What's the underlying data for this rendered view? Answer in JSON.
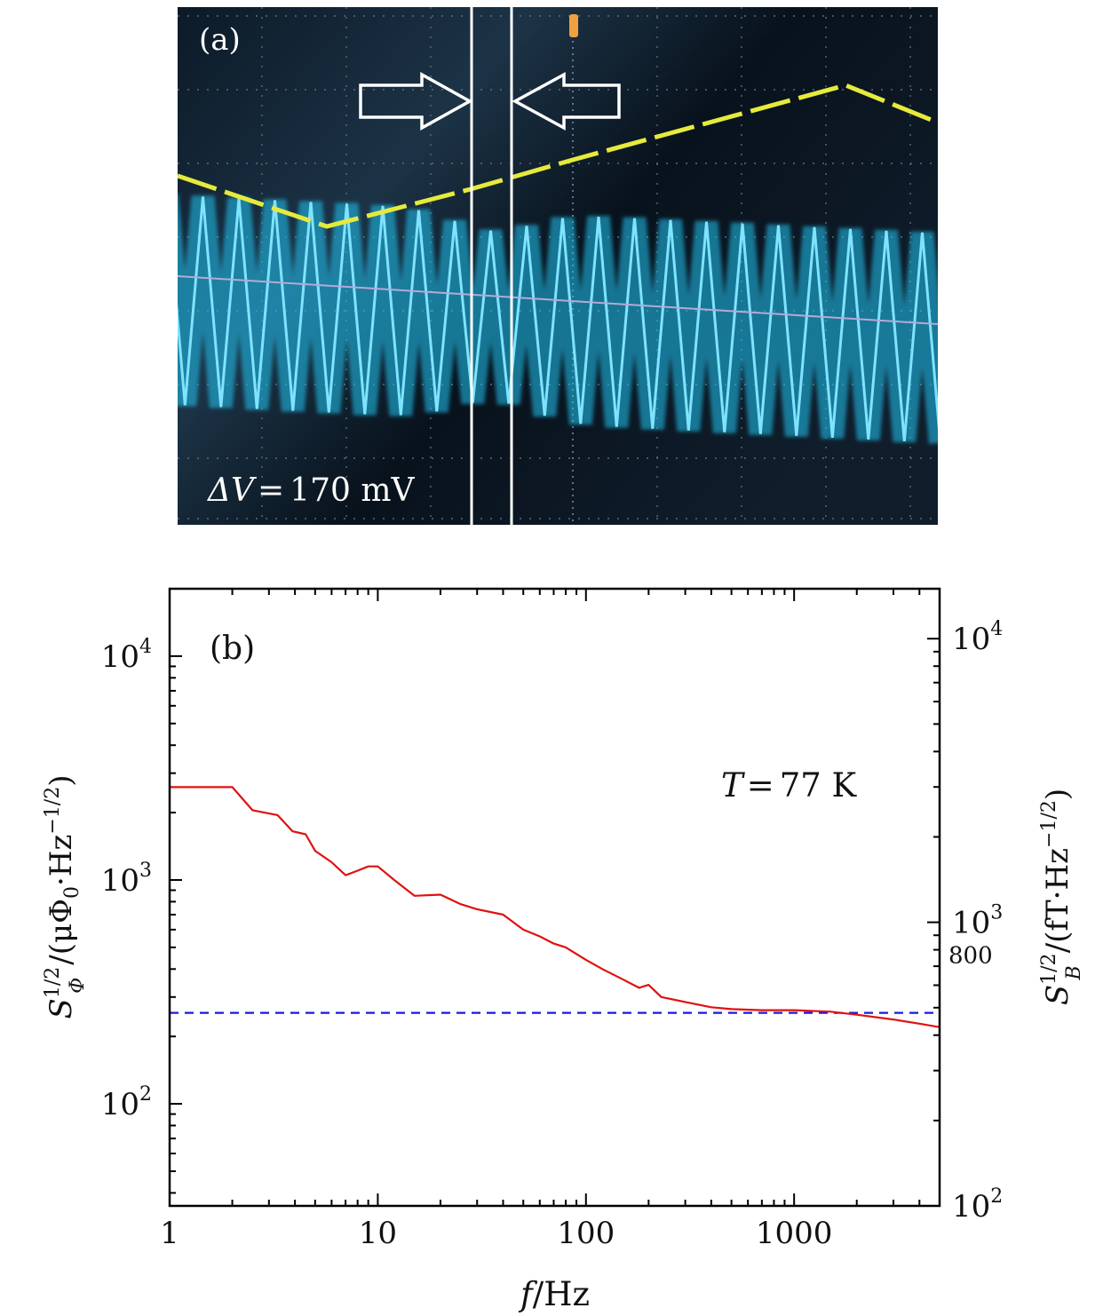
{
  "panel_a": {
    "label": "(a)",
    "delta_v_symbol": "ΔV",
    "delta_v_equals": "=",
    "delta_v_value": "170 mV",
    "colors": {
      "background": "#07101a",
      "grid": "#5d6a78",
      "flux_signal": "#1fc4f2",
      "ramp_trace": "#e6ea3c",
      "baseline": "#b7a9d8",
      "marker": "#ffffff",
      "cursor": "#f0a040"
    }
  },
  "panel_b": {
    "label": "(b)",
    "annotation_symbol": "T",
    "annotation_equals": "=",
    "annotation_value": "77 K",
    "left_ylabel": {
      "base": "S",
      "sup": "1/2",
      "sub": "Φ",
      "unit": "/(μΦ",
      "unit_sub": "0",
      "unit_mid": "·Hz",
      "unit_sup": "−1/2",
      "unit_end": ")"
    },
    "right_ylabel": {
      "base": "S",
      "sup": "1/2",
      "sub": "B",
      "unit": "/(fT·Hz",
      "unit_sup": "−1/2",
      "unit_end": ")"
    },
    "xlabel": {
      "var": "f",
      "unit": "/Hz"
    },
    "colors": {
      "noise": "#e01010",
      "reference": "#1a1adc",
      "axes": "#000000"
    }
  },
  "chart_data": {
    "type": "line",
    "x_scale": "log",
    "y_scale": "log",
    "xlim": [
      1,
      5000
    ],
    "ylim_left": [
      35,
      20000
    ],
    "ylim_right": [
      100,
      15000
    ],
    "x_ticks": [
      {
        "value": 1,
        "label": "1"
      },
      {
        "value": 10,
        "label": "10"
      },
      {
        "value": 100,
        "label": "100"
      },
      {
        "value": 1000,
        "label": "1000"
      }
    ],
    "y_ticks_left": [
      {
        "value": 100,
        "base": "10",
        "exp": "2"
      },
      {
        "value": 1000,
        "base": "10",
        "exp": "3"
      },
      {
        "value": 10000,
        "base": "10",
        "exp": "4"
      }
    ],
    "y_ticks_right": [
      {
        "value": 100,
        "base": "10",
        "exp": "2"
      },
      {
        "value": 1000,
        "base": "10",
        "exp": "3"
      },
      {
        "value": 10000,
        "base": "10",
        "exp": "4"
      }
    ],
    "right_marker": {
      "value": 800,
      "label": "800"
    },
    "series": [
      {
        "x": [
          1,
          2,
          2.5,
          3.3,
          3.9,
          4.5,
          5,
          6,
          7,
          8,
          9,
          10,
          12,
          15,
          20,
          25,
          30,
          40,
          50,
          60,
          70,
          80,
          100,
          120,
          150,
          180,
          200,
          230,
          300,
          400,
          500,
          700,
          1000,
          1500,
          2000,
          3000,
          4000,
          5000
        ],
        "y": [
          2600,
          2600,
          2050,
          1950,
          1650,
          1600,
          1350,
          1200,
          1050,
          1100,
          1150,
          1150,
          1000,
          850,
          860,
          780,
          740,
          700,
          600,
          560,
          520,
          500,
          440,
          400,
          360,
          330,
          340,
          300,
          285,
          270,
          265,
          262,
          262,
          258,
          250,
          238,
          228,
          220
        ]
      },
      {
        "x": [
          1,
          5000
        ],
        "y": [
          255,
          255
        ]
      }
    ]
  }
}
